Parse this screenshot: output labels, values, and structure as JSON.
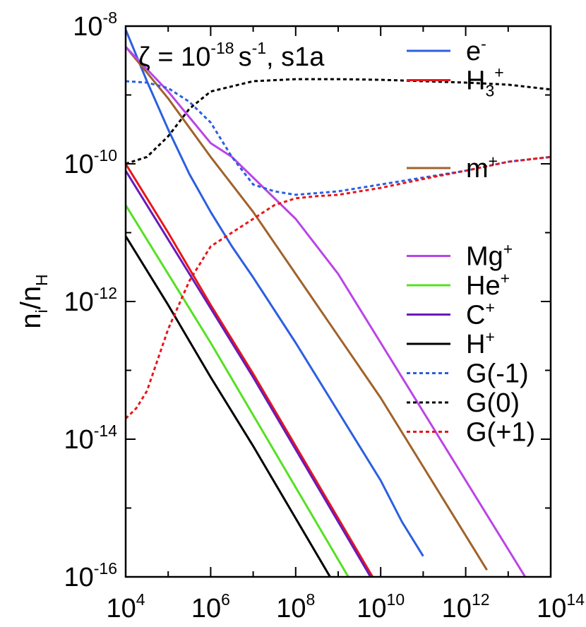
{
  "chart_data": {
    "type": "line",
    "title": {
      "zeta": "ζ = 10",
      "exponent": "-18",
      "unit": "s",
      "unit_exponent": "-1",
      "model": ", s1a"
    },
    "ylabel": {
      "main": "n",
      "sub_i": "i",
      "slash": "/n",
      "sub_H": "H"
    },
    "xlabel": "",
    "x_scale": "log",
    "y_scale": "log",
    "xlim_log10": [
      4,
      14
    ],
    "ylim_log10": [
      -16,
      -8
    ],
    "x_ticks": [
      {
        "base": "10",
        "exp": "4"
      },
      {
        "base": "10",
        "exp": "6"
      },
      {
        "base": "10",
        "exp": "8"
      },
      {
        "base": "10",
        "exp": "10"
      },
      {
        "base": "10",
        "exp": "12"
      },
      {
        "base": "10",
        "exp": "14"
      }
    ],
    "y_ticks": [
      {
        "base": "10",
        "exp": "-8"
      },
      {
        "base": "10",
        "exp": "-10"
      },
      {
        "base": "10",
        "exp": "-12"
      },
      {
        "base": "10",
        "exp": "-14"
      },
      {
        "base": "10",
        "exp": "-16"
      }
    ],
    "series": [
      {
        "key": "e",
        "label": "e",
        "label_sup": "-",
        "label_sub": "",
        "color": "#2b5fe0",
        "dash": false,
        "legend_gap_before": false,
        "points": [
          [
            4,
            -8.05
          ],
          [
            4.5,
            -8.8
          ],
          [
            5,
            -9.5
          ],
          [
            5.5,
            -10.15
          ],
          [
            6,
            -10.7
          ],
          [
            6.5,
            -11.2
          ],
          [
            7,
            -11.65
          ],
          [
            8,
            -12.6
          ],
          [
            9,
            -13.6
          ],
          [
            10,
            -14.6
          ],
          [
            10.5,
            -15.2
          ],
          [
            11,
            -15.7
          ]
        ]
      },
      {
        "key": "h3",
        "label": "H",
        "label_sup": "+",
        "label_sub": "3",
        "color": "#e8161a",
        "dash": false,
        "legend_gap_before": false,
        "points": [
          [
            4,
            -10.0
          ],
          [
            5,
            -11.0
          ],
          [
            6,
            -12.05
          ],
          [
            7,
            -13.05
          ],
          [
            8,
            -14.1
          ],
          [
            9,
            -15.15
          ],
          [
            10,
            -16.2
          ]
        ]
      },
      {
        "key": "m",
        "label": "m",
        "label_sup": "+",
        "label_sub": "",
        "color": "#a0622a",
        "dash": false,
        "legend_gap_before": true,
        "points": [
          [
            4,
            -8.3
          ],
          [
            5,
            -9.05
          ],
          [
            6,
            -9.9
          ],
          [
            7,
            -10.7
          ],
          [
            8,
            -11.6
          ],
          [
            9,
            -12.5
          ],
          [
            10,
            -13.4
          ],
          [
            11,
            -14.4
          ],
          [
            12,
            -15.4
          ],
          [
            12.5,
            -15.9
          ]
        ]
      },
      {
        "key": "mg",
        "label": "Mg",
        "label_sup": "+",
        "label_sub": "",
        "color": "#bb44e6",
        "dash": false,
        "legend_gap_before": true,
        "points": [
          [
            4,
            -8.3
          ],
          [
            5,
            -8.95
          ],
          [
            6,
            -9.7
          ],
          [
            6.5,
            -9.9
          ],
          [
            7,
            -10.2
          ],
          [
            8,
            -10.8
          ],
          [
            9,
            -11.6
          ],
          [
            10,
            -12.6
          ],
          [
            11,
            -13.6
          ],
          [
            12,
            -14.6
          ],
          [
            13,
            -15.6
          ],
          [
            13.5,
            -16.1
          ]
        ]
      },
      {
        "key": "he",
        "label": "He",
        "label_sup": "+",
        "label_sub": "",
        "color": "#55e022",
        "dash": false,
        "legend_gap_before": false,
        "points": [
          [
            4,
            -10.6
          ],
          [
            5,
            -11.6
          ],
          [
            6,
            -12.6
          ],
          [
            7,
            -13.65
          ],
          [
            8,
            -14.7
          ],
          [
            9,
            -15.75
          ],
          [
            10,
            -16.8
          ]
        ]
      },
      {
        "key": "c",
        "label": "C",
        "label_sup": "+",
        "label_sub": "",
        "color": "#6a1ab8",
        "dash": false,
        "legend_gap_before": false,
        "points": [
          [
            4,
            -10.1
          ],
          [
            5,
            -11.1
          ],
          [
            6,
            -12.1
          ],
          [
            7,
            -13.1
          ],
          [
            8,
            -14.15
          ],
          [
            9,
            -15.2
          ],
          [
            10,
            -16.25
          ]
        ]
      },
      {
        "key": "h",
        "label": "H",
        "label_sup": "+",
        "label_sub": "",
        "color": "#000000",
        "dash": false,
        "legend_gap_before": false,
        "points": [
          [
            4,
            -11.05
          ],
          [
            5,
            -12.05
          ],
          [
            6,
            -13.1
          ],
          [
            7,
            -14.1
          ],
          [
            8,
            -15.15
          ],
          [
            9,
            -16.2
          ]
        ]
      },
      {
        "key": "gm1",
        "label": "G(-1)",
        "label_sup": "",
        "label_sub": "",
        "color": "#2b5fe0",
        "dash": true,
        "legend_gap_before": false,
        "points": [
          [
            4,
            -8.8
          ],
          [
            4.5,
            -8.82
          ],
          [
            5,
            -8.9
          ],
          [
            5.5,
            -9.1
          ],
          [
            6,
            -9.4
          ],
          [
            6.5,
            -9.9
          ],
          [
            7,
            -10.3
          ],
          [
            7.5,
            -10.4
          ],
          [
            8,
            -10.45
          ],
          [
            9,
            -10.4
          ],
          [
            10,
            -10.3
          ],
          [
            11,
            -10.2
          ],
          [
            12,
            -10.1
          ],
          [
            13,
            -9.97
          ],
          [
            14,
            -9.9
          ]
        ]
      },
      {
        "key": "g0",
        "label": "G(0)",
        "label_sup": "",
        "label_sub": "",
        "color": "#000000",
        "dash": true,
        "legend_gap_before": false,
        "points": [
          [
            4,
            -10.0
          ],
          [
            4.5,
            -9.9
          ],
          [
            5,
            -9.6
          ],
          [
            5.5,
            -9.2
          ],
          [
            6,
            -8.95
          ],
          [
            7,
            -8.8
          ],
          [
            8,
            -8.77
          ],
          [
            9,
            -8.77
          ],
          [
            10,
            -8.78
          ],
          [
            11,
            -8.8
          ],
          [
            12,
            -8.82
          ],
          [
            13,
            -8.85
          ],
          [
            14,
            -8.92
          ]
        ]
      },
      {
        "key": "gp1",
        "label": "G(+1)",
        "label_sup": "",
        "label_sub": "",
        "color": "#e8161a",
        "dash": true,
        "legend_gap_before": false,
        "points": [
          [
            4,
            -13.7
          ],
          [
            4.25,
            -13.55
          ],
          [
            4.5,
            -13.3
          ],
          [
            5,
            -12.4
          ],
          [
            5.5,
            -11.7
          ],
          [
            6,
            -11.2
          ],
          [
            7,
            -10.8
          ],
          [
            7.5,
            -10.6
          ],
          [
            8,
            -10.5
          ],
          [
            8.5,
            -10.47
          ],
          [
            9,
            -10.45
          ],
          [
            10,
            -10.35
          ],
          [
            11,
            -10.22
          ],
          [
            12,
            -10.1
          ],
          [
            13,
            -9.97
          ],
          [
            14,
            -9.9
          ]
        ]
      }
    ]
  }
}
